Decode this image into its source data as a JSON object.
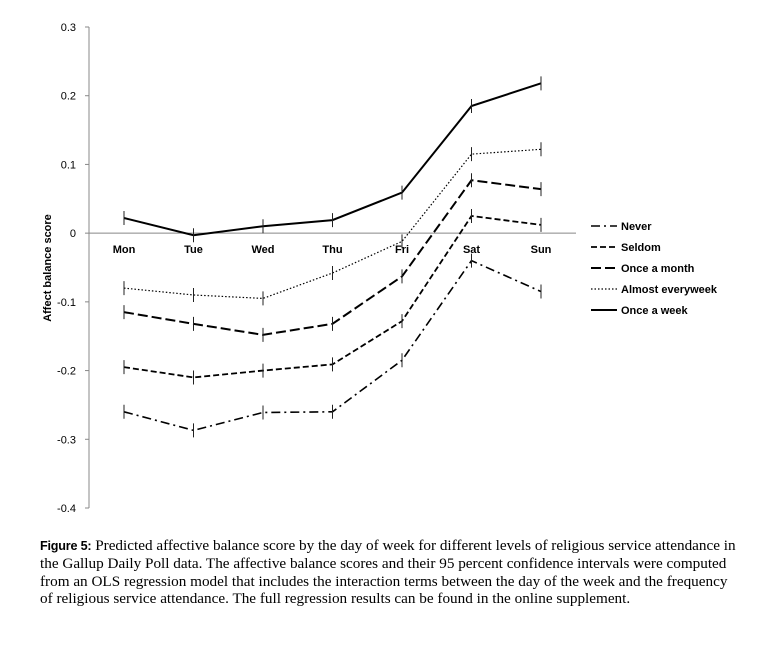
{
  "chart_data": {
    "type": "line",
    "title": "",
    "xlabel": "",
    "ylabel": "Affect balance score",
    "ylim": [
      -0.4,
      0.3
    ],
    "yticks": [
      0.3,
      0.2,
      0.1,
      0,
      -0.1,
      -0.2,
      -0.3,
      -0.4
    ],
    "ytick_labels": [
      "0.3",
      "0.2",
      "0.1",
      "0",
      "-0.1",
      "-0.2",
      "-0.3",
      "-0.4"
    ],
    "categories": [
      "Mon",
      "Tue",
      "Wed",
      "Thu",
      "Fri",
      "Sat",
      "Sun"
    ],
    "series": [
      {
        "name": "Never",
        "style": "dashdot",
        "values": [
          -0.26,
          -0.287,
          -0.261,
          -0.26,
          -0.185,
          -0.04,
          -0.085
        ]
      },
      {
        "name": "Seldom",
        "style": "shortdash",
        "values": [
          -0.195,
          -0.21,
          -0.2,
          -0.191,
          -0.128,
          0.025,
          0.012
        ]
      },
      {
        "name": "Once a month",
        "style": "longdash",
        "values": [
          -0.115,
          -0.132,
          -0.148,
          -0.132,
          -0.063,
          0.077,
          0.064
        ]
      },
      {
        "name": "Almost everyweek",
        "style": "dotted",
        "values": [
          -0.08,
          -0.09,
          -0.095,
          -0.058,
          -0.012,
          0.115,
          0.122
        ]
      },
      {
        "name": "Once a week",
        "style": "solid",
        "values": [
          0.022,
          -0.003,
          0.01,
          0.019,
          0.059,
          0.185,
          0.218
        ]
      }
    ],
    "legend_position": "right"
  },
  "caption": {
    "label": "Figure 5:",
    "text": " Predicted affective balance score by the day of week for different levels of religious service attendance in the Gallup Daily Poll data. The affective balance scores and their 95 percent confidence intervals were computed from an OLS regression model that includes the interaction terms between the day of the week and the frequency of religious service attendance. The full regression results can be found in the online supplement."
  }
}
